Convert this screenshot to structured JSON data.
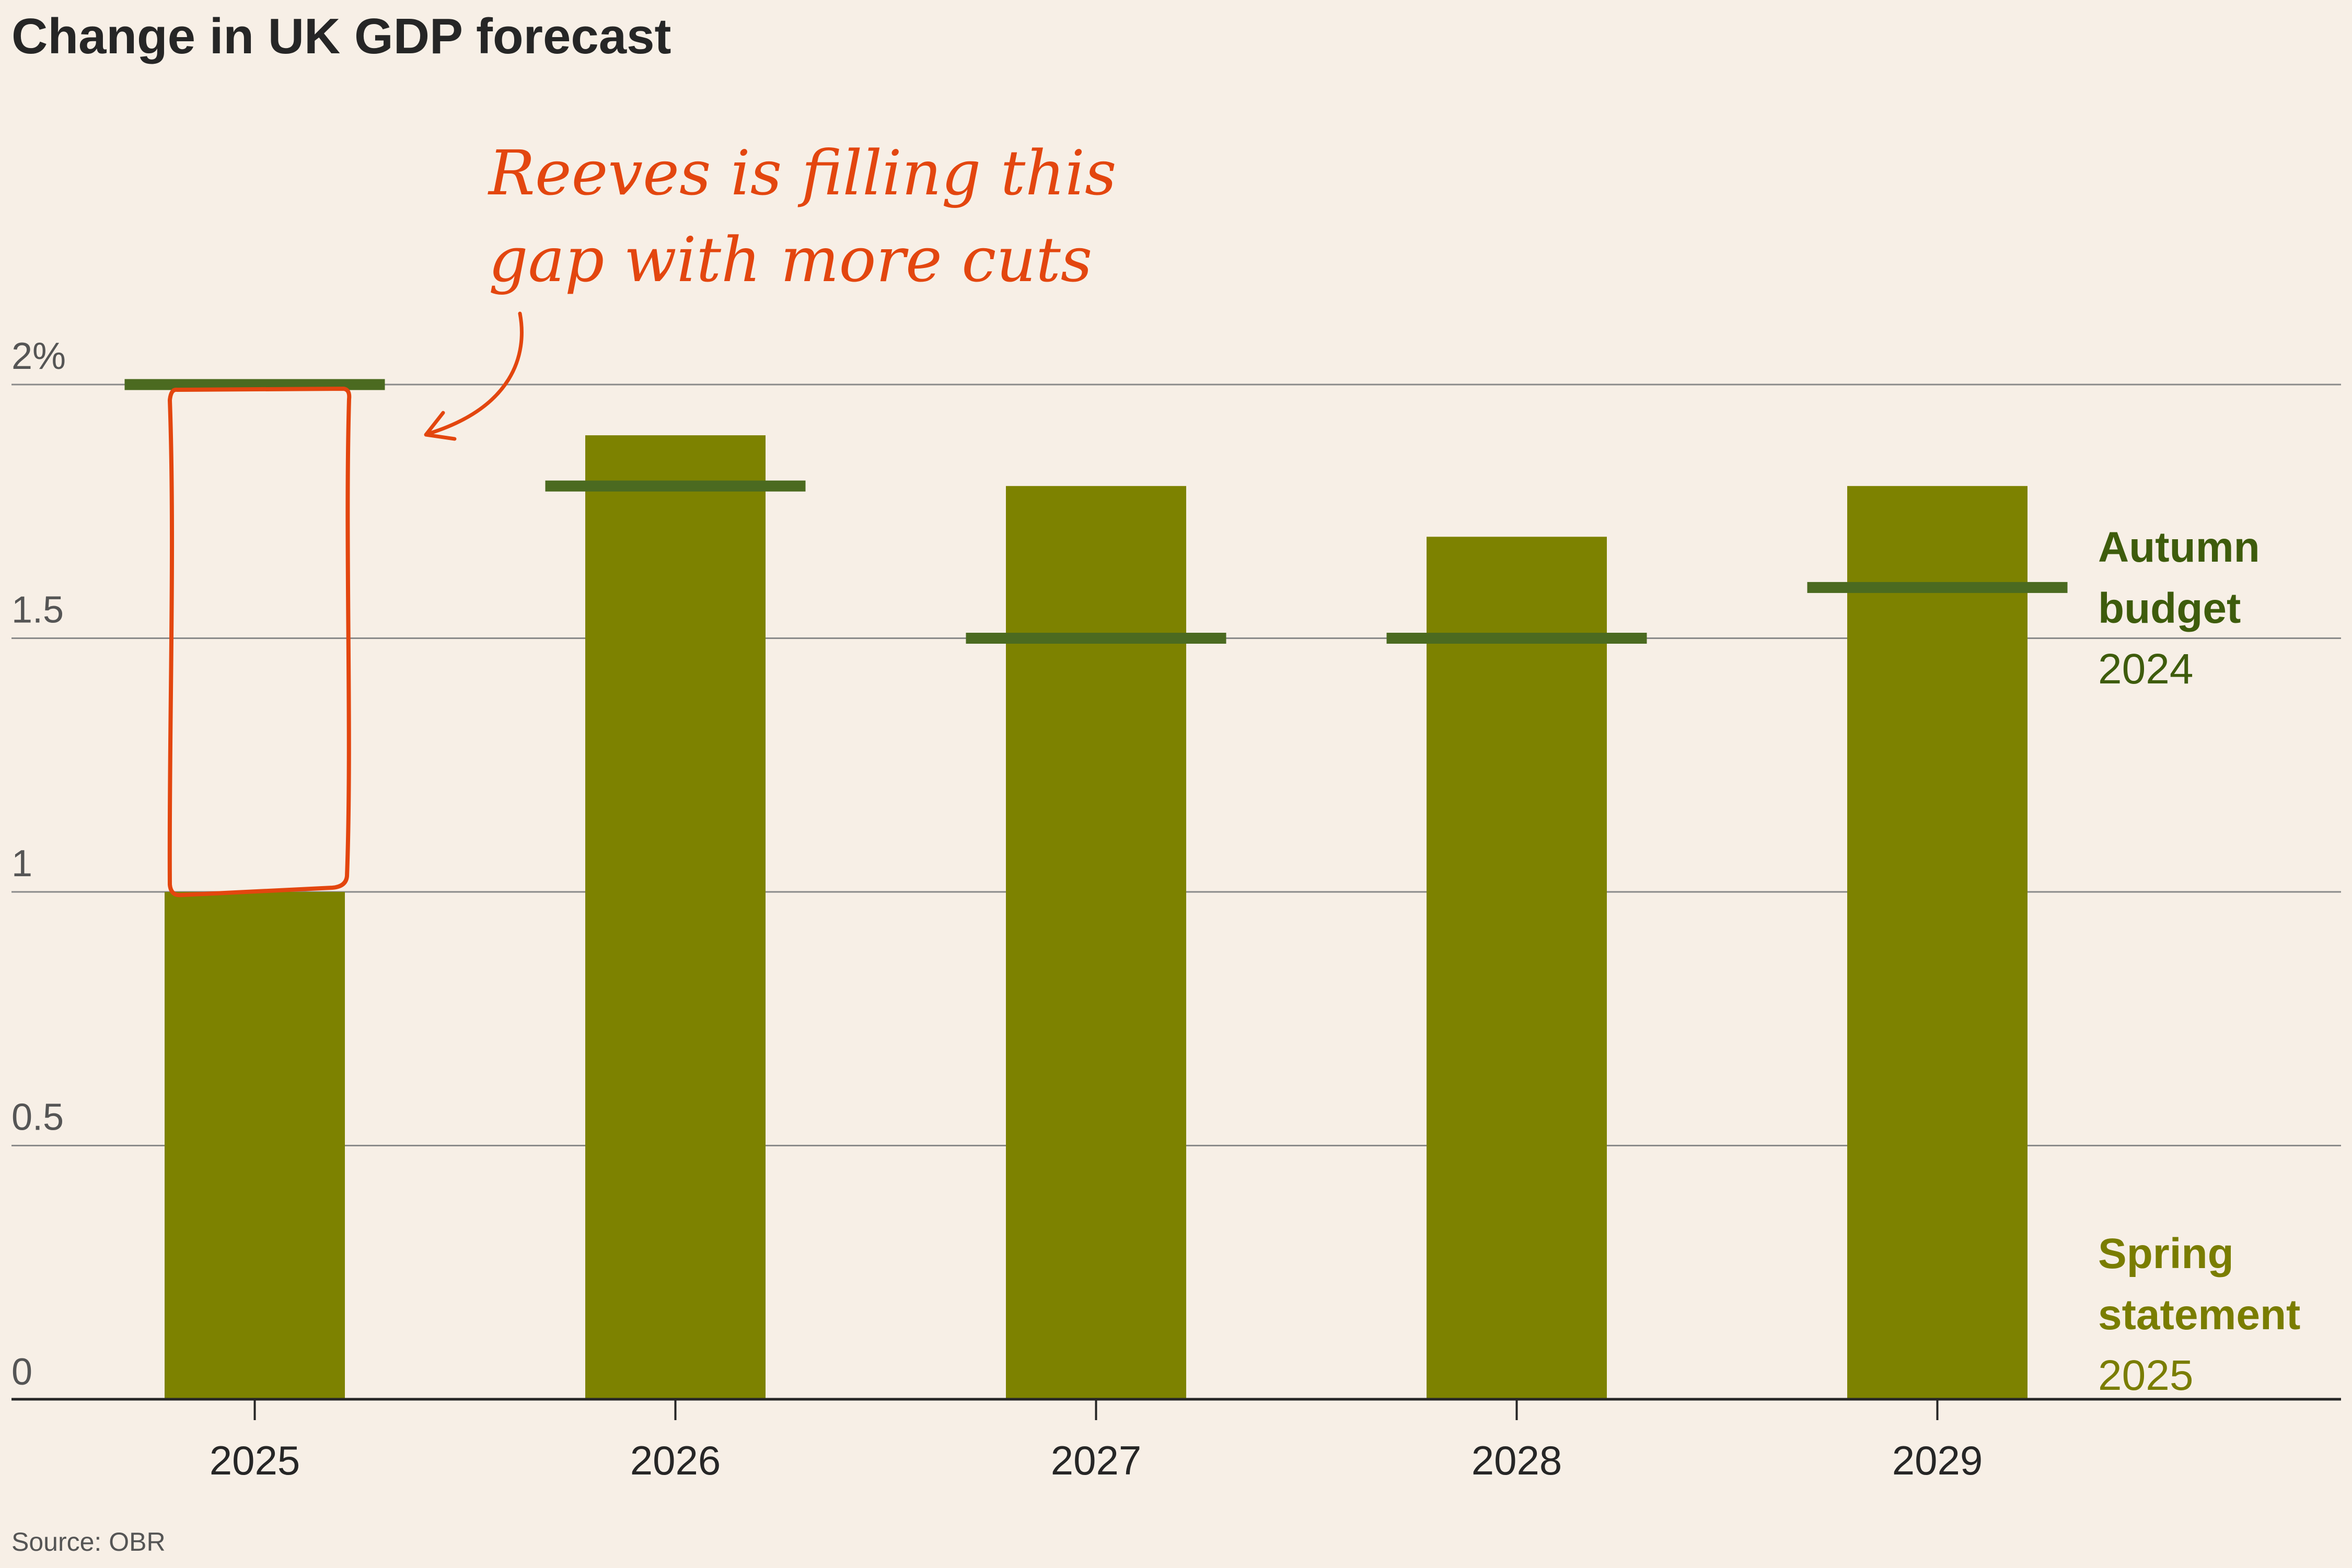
{
  "chart_data": {
    "type": "bar",
    "title": "Change in UK GDP forecast",
    "categories": [
      "2025",
      "2026",
      "2027",
      "2028",
      "2029"
    ],
    "series": [
      {
        "name": "Spring statement 2025",
        "kind": "bar",
        "values": [
          1.0,
          1.9,
          1.8,
          1.7,
          1.8
        ]
      },
      {
        "name": "Autumn budget 2024",
        "kind": "marker",
        "values": [
          2.0,
          1.8,
          1.5,
          1.5,
          1.6
        ]
      }
    ],
    "ylim": [
      0,
      2
    ],
    "yticks": [
      0,
      0.5,
      1,
      1.5,
      2
    ],
    "ytick_labels": [
      "0",
      "0.5",
      "1",
      "1.5",
      "2%"
    ],
    "gridlines": [
      0.5,
      1,
      1.5,
      2
    ],
    "legend": {
      "autumn": {
        "line1": "Autumn",
        "line2": "budget",
        "line3": "2024",
        "color": "#3e5c0c"
      },
      "spring": {
        "line1": "Spring",
        "line2": "statement",
        "line3": "2025",
        "color": "#7a7d00"
      }
    },
    "annotation": {
      "line1": "Reeves is filling this",
      "line2": "gap with more cuts",
      "category": "2025",
      "gap_from": 1.0,
      "gap_to": 2.0,
      "color": "#e3460f"
    },
    "source": "Source: OBR"
  },
  "colors": {
    "background": "#f7efe6",
    "bar": "#7d8200",
    "marker": "#4b6a20",
    "grid": "#8a8a8a",
    "axis": "#262626"
  }
}
